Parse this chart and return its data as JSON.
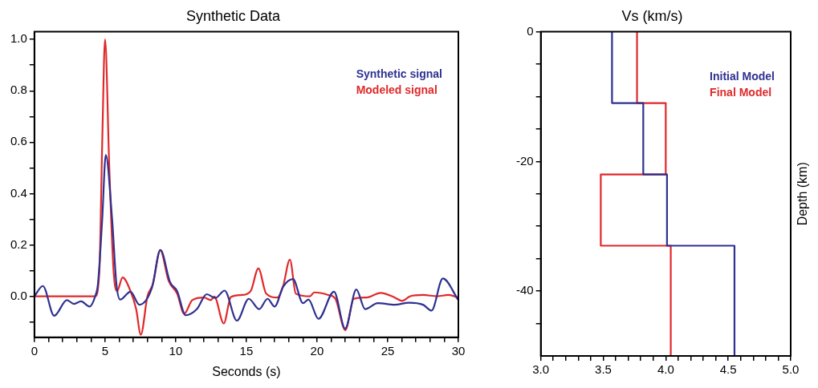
{
  "chart_data": [
    {
      "type": "line",
      "title": "Synthetic Data",
      "xlabel": "Seconds (s)",
      "legend": "top right",
      "grid": false,
      "marker": "none",
      "line_style": "solid",
      "xlim": [
        0,
        30
      ],
      "xticks": [
        0,
        {
          "value": 1,
          "label": null
        },
        {
          "value": 2,
          "label": null
        },
        {
          "value": 3,
          "label": null
        },
        {
          "value": 4,
          "label": null
        },
        5,
        {
          "value": 6,
          "label": null
        },
        {
          "value": 7,
          "label": null
        },
        {
          "value": 8,
          "label": null
        },
        {
          "value": 9,
          "label": null
        },
        10,
        {
          "value": 11,
          "label": null
        },
        {
          "value": 12,
          "label": null
        },
        {
          "value": 13,
          "label": null
        },
        {
          "value": 14,
          "label": null
        },
        15,
        {
          "value": 16,
          "label": null
        },
        {
          "value": 17,
          "label": null
        },
        {
          "value": 18,
          "label": null
        },
        {
          "value": 19,
          "label": null
        },
        20,
        {
          "value": 21,
          "label": null
        },
        {
          "value": 22,
          "label": null
        },
        {
          "value": 23,
          "label": null
        },
        {
          "value": 24,
          "label": null
        },
        25,
        {
          "value": 26,
          "label": null
        },
        {
          "value": 27,
          "label": null
        },
        {
          "value": 28,
          "label": null
        },
        {
          "value": 29,
          "label": null
        },
        30
      ],
      "ylim": [
        -0.16,
        1.03
      ],
      "yticks": [
        {
          "value": -0.1,
          "label": null
        },
        {
          "value": 0,
          "label": "0.0"
        },
        {
          "value": 0.1,
          "label": null
        },
        0.2,
        {
          "value": 0.3,
          "label": null
        },
        0.4,
        {
          "value": 0.5,
          "label": null
        },
        0.6,
        {
          "value": 0.7,
          "label": null
        },
        0.8,
        {
          "value": 0.9,
          "label": null
        },
        {
          "value": 1,
          "label": "1.0"
        }
      ],
      "series": [
        {
          "name": "Synthetic signal",
          "color": "#2e3190",
          "x": [
            0,
            0.6,
            1.4,
            2.3,
            2.8,
            3.3,
            3.9,
            4.3,
            4.5,
            4.8,
            5.05,
            5.5,
            5.8,
            6.07,
            6.8,
            7.43,
            8.3,
            8.92,
            9.6,
            10.1,
            10.7,
            11.5,
            12.2,
            12.8,
            13.46,
            14.33,
            15.17,
            15.9,
            16.5,
            17.0,
            17.6,
            18.3,
            19.0,
            19.39,
            20.1,
            21.2,
            21.99,
            22.78,
            23.4,
            24.3,
            25.5,
            26.5,
            27.5,
            28.1,
            28.9,
            30
          ],
          "values": [
            0,
            0.04,
            -0.076,
            -0.015,
            -0.03,
            -0.02,
            -0.04,
            0,
            0.05,
            0.3,
            0.55,
            0.3,
            0.05,
            -0.013,
            0.018,
            -0.033,
            0.03,
            0.18,
            0.055,
            0.02,
            -0.074,
            -0.05,
            0.008,
            -0.007,
            0.022,
            -0.095,
            -0.01,
            -0.05,
            -0.01,
            -0.04,
            0.037,
            0.067,
            -0.027,
            -0.013,
            -0.088,
            0.018,
            -0.126,
            0.026,
            -0.05,
            -0.027,
            -0.033,
            -0.025,
            -0.033,
            -0.056,
            0.069,
            -0.015
          ]
        },
        {
          "name": "Modeled signal",
          "color": "#e0282a",
          "x": [
            0,
            4.3,
            4.6,
            4.8,
            5.0,
            5.3,
            5.6,
            5.85,
            6.24,
            6.8,
            7.2,
            7.53,
            8.0,
            8.4,
            8.9,
            9.5,
            10.1,
            10.6,
            11.17,
            12.0,
            12.48,
            12.73,
            13.4,
            13.9,
            14.7,
            15.3,
            15.85,
            16.4,
            17.2,
            17.6,
            18.08,
            18.5,
            19.5,
            19.8,
            20.8,
            21.3,
            22.0,
            22.6,
            23.5,
            24.5,
            25.5,
            26.0,
            26.6,
            27.5,
            28.5,
            29.3,
            30
          ],
          "values": [
            0,
            0,
            0.1,
            0.6,
            1.0,
            0.5,
            0.1,
            0.02,
            0.073,
            0.02,
            -0.05,
            -0.15,
            0,
            0.05,
            0.18,
            0.06,
            0.01,
            -0.068,
            -0.015,
            -0.005,
            -0.015,
            -0.001,
            -0.106,
            -0.003,
            0.005,
            0.02,
            0.108,
            0.01,
            -0.005,
            0.04,
            0.143,
            0.01,
            0,
            0.015,
            0.005,
            -0.01,
            -0.132,
            -0.01,
            -0.005,
            0.013,
            -0.005,
            -0.018,
            0,
            0.005,
            0,
            0.005,
            -0.005
          ]
        }
      ]
    },
    {
      "type": "line",
      "title": "Vs (km/s)",
      "ylabel": "Depth (km)",
      "legend": "top right",
      "grid": false,
      "marker": "none",
      "line_style": "solid",
      "xlim": [
        3,
        5
      ],
      "xticks": [
        {
          "value": 3,
          "label": "3.0"
        },
        {
          "value": 3.1,
          "label": null
        },
        {
          "value": 3.2,
          "label": null
        },
        {
          "value": 3.3,
          "label": null
        },
        {
          "value": 3.4,
          "label": null
        },
        3.5,
        {
          "value": 3.6,
          "label": null
        },
        {
          "value": 3.7,
          "label": null
        },
        {
          "value": 3.8,
          "label": null
        },
        {
          "value": 3.9,
          "label": null
        },
        {
          "value": 4,
          "label": "4.0"
        },
        {
          "value": 4.1,
          "label": null
        },
        {
          "value": 4.2,
          "label": null
        },
        {
          "value": 4.3,
          "label": null
        },
        {
          "value": 4.4,
          "label": null
        },
        4.5,
        {
          "value": 4.6,
          "label": null
        },
        {
          "value": 4.7,
          "label": null
        },
        {
          "value": 4.8,
          "label": null
        },
        {
          "value": 4.9,
          "label": null
        },
        {
          "value": 5,
          "label": "5.0"
        }
      ],
      "ylim": [
        -50,
        0
      ],
      "yticks": [
        {
          "value": -45,
          "label": null
        },
        -40,
        {
          "value": -35,
          "label": null
        },
        {
          "value": -30,
          "label": null
        },
        {
          "value": -25,
          "label": null
        },
        -20,
        {
          "value": -15,
          "label": null
        },
        {
          "value": -10,
          "label": null
        },
        {
          "value": -5,
          "label": null
        },
        0
      ],
      "series": [
        {
          "name": "Initial Model",
          "color": "#2e3190",
          "x": [
            3.57,
            3.57,
            3.82,
            3.82,
            4.01,
            4.01,
            4.55,
            4.55
          ],
          "values": [
            0,
            -11,
            -11,
            -22,
            -22,
            -33,
            -33,
            -50
          ]
        },
        {
          "name": "Final Model",
          "color": "#e0282a",
          "x": [
            3.77,
            3.77,
            4.0,
            4.0,
            3.48,
            3.48,
            4.04,
            4.04
          ],
          "values": [
            0,
            -11,
            -11,
            -22,
            -22,
            -33,
            -33,
            -50
          ]
        }
      ]
    }
  ]
}
